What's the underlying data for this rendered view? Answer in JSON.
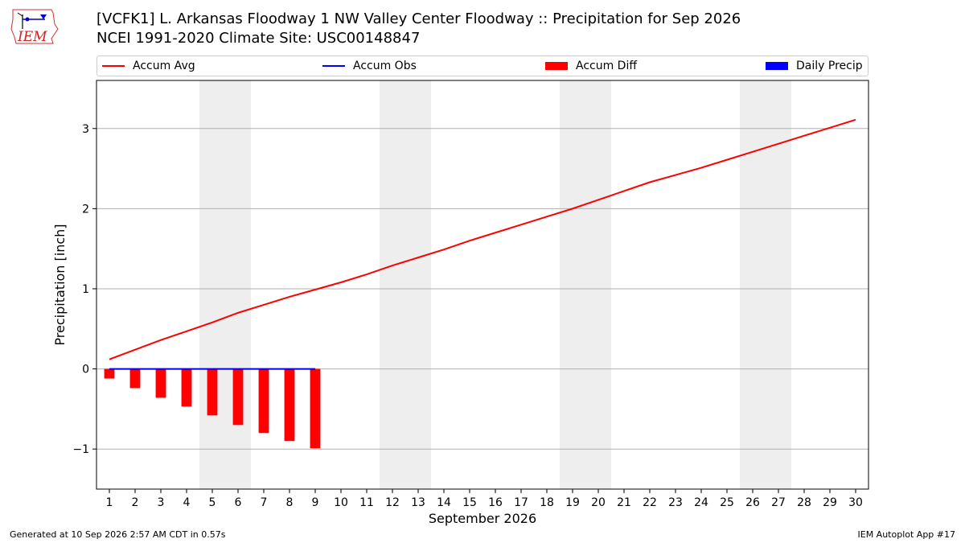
{
  "header": {
    "title_line1": "[VCFK1] L. Arkansas Floodway 1 NW Valley Center Floodway :: Precipitation for Sep 2026",
    "title_line2": "NCEI 1991-2020 Climate Site: USC00148847",
    "logo_text": "IEM"
  },
  "legend": {
    "items": [
      {
        "label": "Accum Avg",
        "color": "#ff0000",
        "kind": "line"
      },
      {
        "label": "Accum Obs",
        "color": "#0000ff",
        "kind": "line"
      },
      {
        "label": "Accum Diff",
        "color": "#ff0000",
        "kind": "patch"
      },
      {
        "label": "Daily Precip",
        "color": "#0000ff",
        "kind": "patch"
      }
    ]
  },
  "footer": {
    "left": "Generated at 10 Sep 2026 2:57 AM CDT in 0.57s",
    "right": "IEM Autoplot App #17"
  },
  "chart_data": {
    "type": "line",
    "title": "[VCFK1] L. Arkansas Floodway 1 NW Valley Center Floodway :: Precipitation for Sep 2026",
    "xlabel": "September 2026",
    "ylabel": "Precipitation [inch]",
    "xlim": [
      0.5,
      30.5
    ],
    "ylim": [
      -1.5,
      3.6
    ],
    "yticks": [
      -1,
      0,
      1,
      2,
      3
    ],
    "ytick_labels": [
      "−1",
      "0",
      "1",
      "2",
      "3"
    ],
    "xticks": [
      1,
      2,
      3,
      4,
      5,
      6,
      7,
      8,
      9,
      10,
      11,
      12,
      13,
      14,
      15,
      16,
      17,
      18,
      19,
      20,
      21,
      22,
      23,
      24,
      25,
      26,
      27,
      28,
      29,
      30
    ],
    "grid": "y",
    "weekend_shading": [
      [
        4.5,
        6.5
      ],
      [
        11.5,
        13.5
      ],
      [
        18.5,
        20.5
      ],
      [
        25.5,
        27.5
      ]
    ],
    "shade_color": "#eeeeee",
    "series": [
      {
        "name": "Accum Avg",
        "kind": "line",
        "color": "#ff0000",
        "x": [
          1,
          2,
          3,
          4,
          5,
          6,
          7,
          8,
          9,
          10,
          11,
          12,
          13,
          14,
          15,
          16,
          17,
          18,
          19,
          20,
          21,
          22,
          23,
          24,
          25,
          26,
          27,
          28,
          29,
          30
        ],
        "values": [
          0.12,
          0.24,
          0.36,
          0.47,
          0.58,
          0.7,
          0.8,
          0.9,
          0.99,
          1.08,
          1.18,
          1.29,
          1.39,
          1.49,
          1.6,
          1.7,
          1.8,
          1.9,
          2.0,
          2.11,
          2.22,
          2.33,
          2.42,
          2.51,
          2.61,
          2.71,
          2.81,
          2.91,
          3.01,
          3.11
        ]
      },
      {
        "name": "Accum Obs",
        "kind": "line",
        "color": "#0000ff",
        "x": [
          1,
          2,
          3,
          4,
          5,
          6,
          7,
          8,
          9
        ],
        "values": [
          0,
          0,
          0,
          0,
          0,
          0,
          0,
          0,
          0
        ]
      },
      {
        "name": "Accum Diff",
        "kind": "bar",
        "color": "#ff0000",
        "x": [
          1,
          2,
          3,
          4,
          5,
          6,
          7,
          8,
          9
        ],
        "values": [
          -0.12,
          -0.24,
          -0.36,
          -0.47,
          -0.58,
          -0.7,
          -0.8,
          -0.9,
          -0.99
        ]
      },
      {
        "name": "Daily Precip",
        "kind": "bar",
        "color": "#0000ff",
        "x": [
          1,
          2,
          3,
          4,
          5,
          6,
          7,
          8,
          9
        ],
        "values": [
          0,
          0,
          0,
          0,
          0,
          0,
          0,
          0,
          0
        ]
      }
    ]
  }
}
